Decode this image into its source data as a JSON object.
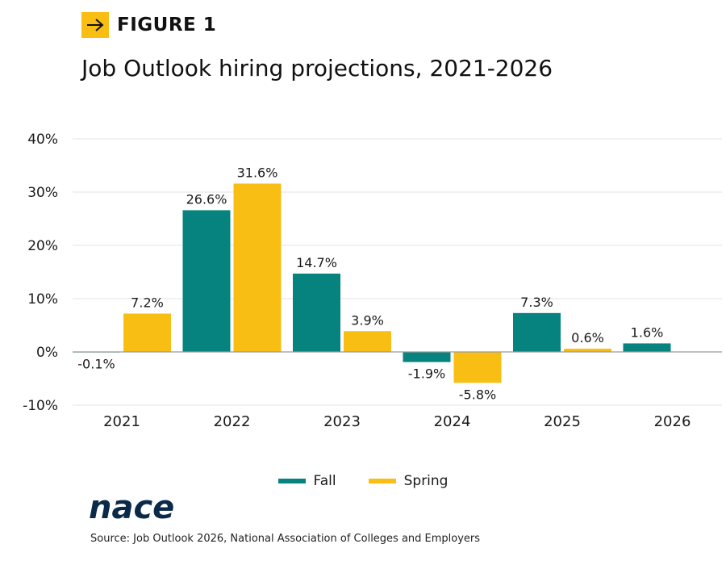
{
  "figure_label": "FIGURE 1",
  "title": "Job Outlook hiring projections, 2021-2026",
  "source": "Source: Job Outlook 2026, National Association of Colleges and Employers",
  "brand": "nace",
  "icons": {
    "figure_arrow": "arrow-right-icon"
  },
  "colors": {
    "fall": "#06837f",
    "spring": "#f9be14",
    "accent": "#f9be14",
    "logo": "#0b2a4a"
  },
  "chart_data": {
    "type": "bar",
    "categories": [
      "2021",
      "2022",
      "2023",
      "2024",
      "2025",
      "2026"
    ],
    "series": [
      {
        "name": "Fall",
        "values": [
          -0.1,
          26.6,
          14.7,
          -1.9,
          7.3,
          1.6
        ],
        "labels": [
          "-0.1%",
          "26.6%",
          "14.7%",
          "-1.9%",
          "7.3%",
          "1.6%"
        ]
      },
      {
        "name": "Spring",
        "values": [
          7.2,
          31.6,
          3.9,
          -5.8,
          0.6,
          null
        ],
        "labels": [
          "7.2%",
          "31.6%",
          "3.9%",
          "-5.8%",
          "0.6%",
          ""
        ]
      }
    ],
    "ylim": [
      -10,
      40
    ],
    "yticks": [
      40,
      30,
      20,
      10,
      0,
      -10
    ],
    "ytick_labels": [
      "40%",
      "30%",
      "20%",
      "10%",
      "0%",
      "-10%"
    ],
    "grid": true,
    "legend": "bottom",
    "xlabel": "",
    "ylabel": ""
  }
}
